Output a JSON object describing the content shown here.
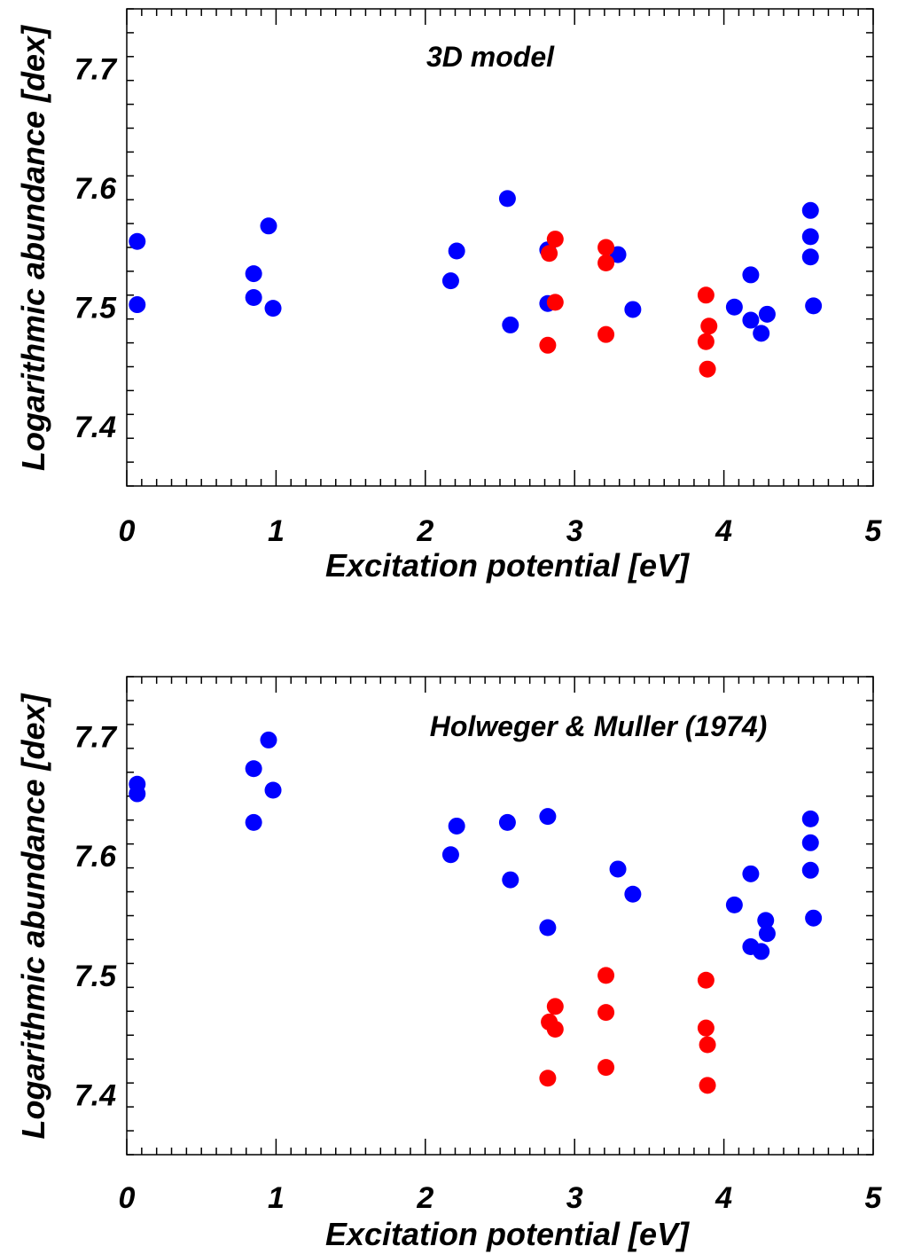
{
  "chart_data": [
    {
      "type": "scatter",
      "title": "3D model",
      "xlabel": "Excitation potential [eV]",
      "ylabel": "Logarithmic abundance [dex]",
      "xlim": [
        0,
        5
      ],
      "ylim": [
        7.35,
        7.75
      ],
      "xticks": [
        "0",
        "1",
        "2",
        "3",
        "4",
        "5"
      ],
      "yticks": [
        "7.4",
        "7.5",
        "7.6",
        "7.7"
      ],
      "grid": false,
      "series": [
        {
          "color": "#0000ff",
          "points": [
            [
              0.07,
              7.555
            ],
            [
              0.07,
              7.502
            ],
            [
              0.85,
              7.528
            ],
            [
              0.85,
              7.508
            ],
            [
              0.95,
              7.568
            ],
            [
              0.98,
              7.499
            ],
            [
              2.17,
              7.522
            ],
            [
              2.21,
              7.547
            ],
            [
              2.55,
              7.591
            ],
            [
              2.57,
              7.485
            ],
            [
              2.82,
              7.548
            ],
            [
              2.82,
              7.503
            ],
            [
              3.29,
              7.544
            ],
            [
              3.39,
              7.498
            ],
            [
              4.07,
              7.5
            ],
            [
              4.18,
              7.527
            ],
            [
              4.18,
              7.489
            ],
            [
              4.25,
              7.478
            ],
            [
              4.29,
              7.494
            ],
            [
              4.58,
              7.581
            ],
            [
              4.58,
              7.559
            ],
            [
              4.58,
              7.542
            ],
            [
              4.6,
              7.501
            ]
          ]
        },
        {
          "color": "#ff0000",
          "points": [
            [
              2.83,
              7.545
            ],
            [
              2.87,
              7.557
            ],
            [
              2.87,
              7.504
            ],
            [
              2.82,
              7.468
            ],
            [
              3.21,
              7.55
            ],
            [
              3.21,
              7.537
            ],
            [
              3.21,
              7.477
            ],
            [
              3.88,
              7.51
            ],
            [
              3.88,
              7.471
            ],
            [
              3.9,
              7.484
            ],
            [
              3.89,
              7.448
            ]
          ]
        }
      ]
    },
    {
      "type": "scatter",
      "title": "Holweger & Muller (1974)",
      "xlabel": "Excitation potential [eV]",
      "ylabel": "Logarithmic abundance [dex]",
      "xlim": [
        0,
        5
      ],
      "ylim": [
        7.35,
        7.75
      ],
      "xticks": [
        "0",
        "1",
        "2",
        "3",
        "4",
        "5"
      ],
      "yticks": [
        "7.4",
        "7.5",
        "7.6",
        "7.7"
      ],
      "grid": false,
      "series": [
        {
          "color": "#0000ff",
          "points": [
            [
              0.07,
              7.66
            ],
            [
              0.07,
              7.652
            ],
            [
              0.85,
              7.673
            ],
            [
              0.85,
              7.628
            ],
            [
              0.95,
              7.697
            ],
            [
              0.98,
              7.655
            ],
            [
              2.17,
              7.601
            ],
            [
              2.21,
              7.625
            ],
            [
              2.55,
              7.628
            ],
            [
              2.57,
              7.58
            ],
            [
              2.82,
              7.633
            ],
            [
              2.82,
              7.54
            ],
            [
              3.29,
              7.589
            ],
            [
              3.39,
              7.568
            ],
            [
              4.07,
              7.559
            ],
            [
              4.18,
              7.585
            ],
            [
              4.18,
              7.524
            ],
            [
              4.25,
              7.52
            ],
            [
              4.28,
              7.546
            ],
            [
              4.29,
              7.535
            ],
            [
              4.58,
              7.631
            ],
            [
              4.58,
              7.611
            ],
            [
              4.58,
              7.588
            ],
            [
              4.6,
              7.548
            ]
          ]
        },
        {
          "color": "#ff0000",
          "points": [
            [
              2.83,
              7.461
            ],
            [
              2.87,
              7.474
            ],
            [
              2.87,
              7.455
            ],
            [
              2.82,
              7.414
            ],
            [
              3.21,
              7.5
            ],
            [
              3.21,
              7.469
            ],
            [
              3.21,
              7.423
            ],
            [
              3.88,
              7.496
            ],
            [
              3.88,
              7.456
            ],
            [
              3.89,
              7.442
            ],
            [
              3.89,
              7.408
            ]
          ]
        }
      ]
    }
  ]
}
